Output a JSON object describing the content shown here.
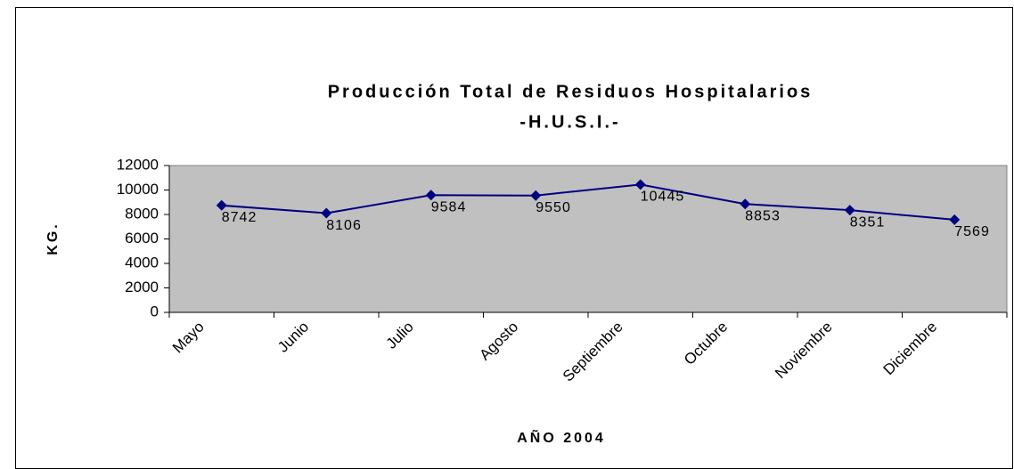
{
  "chart_data": {
    "type": "line",
    "title": [
      "Producción Total de Residuos Hospitalarios",
      "-H.U.S.I.-"
    ],
    "x_label": "AÑO 2004",
    "y_label": "KG.",
    "categories": [
      "Mayo",
      "Junio",
      "Julio",
      "Agosto",
      "Septiembre",
      "Octubre",
      "Noviembre",
      "Diciembre"
    ],
    "values": [
      8742,
      8106,
      9584,
      9550,
      10445,
      8853,
      8351,
      7569
    ],
    "color": "#000080",
    "ylim": [
      0,
      12000
    ],
    "yticks": [
      0,
      2000,
      4000,
      6000,
      8000,
      10000,
      12000
    ],
    "plot_background": "#c0c0c0"
  }
}
